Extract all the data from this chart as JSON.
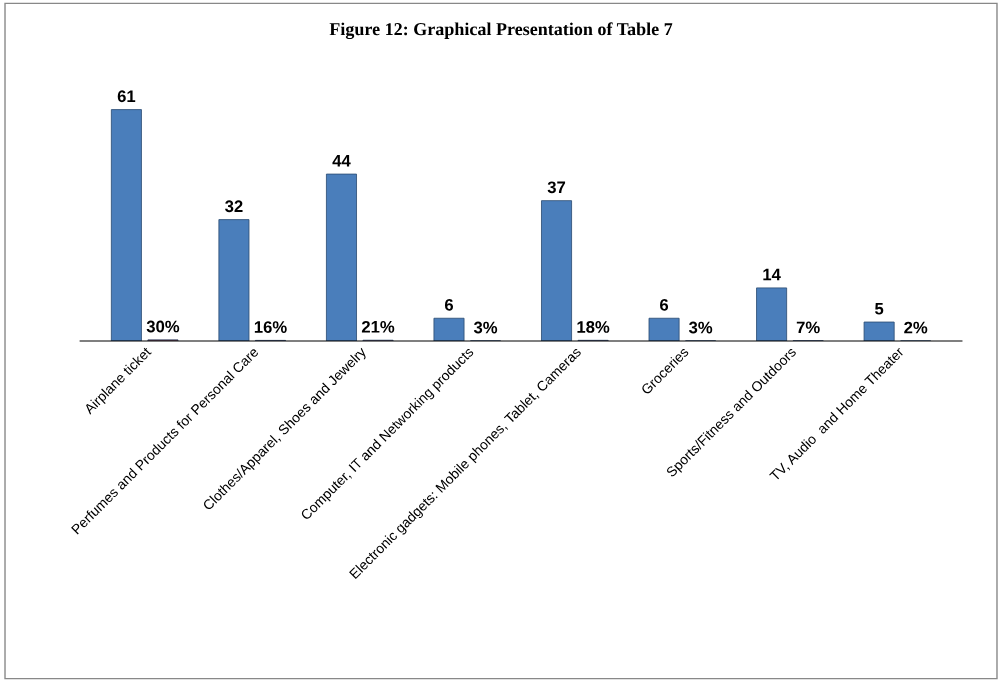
{
  "chart_data": {
    "type": "bar",
    "title": "Figure 12: Graphical Presentation of Table 7",
    "categories": [
      "Airplane ticket",
      "Perfumes and Products for Personal Care",
      "Clothes/Apparel, Shoes and Jewelry",
      "Computer, IT and Networking products",
      "Electronic gadgets: Mobile phones, Tablet, Cameras",
      "Groceries",
      "Sports/Fitness and Outdoors",
      "TV, Audio  and Home Theater"
    ],
    "series": [
      {
        "color": "#4a7ebb",
        "values": [
          61,
          32,
          44,
          6,
          37,
          6,
          14,
          5
        ],
        "value_labels": [
          "61",
          "32",
          "44",
          "6",
          "37",
          "6",
          "14",
          "5"
        ]
      },
      {
        "color": "#be4b48",
        "values": [
          0.3,
          0.16,
          0.21,
          0.03,
          0.18,
          0.03,
          0.07,
          0.02
        ],
        "value_labels": [
          "30%",
          "16%",
          "21%",
          "3%",
          "18%",
          "3%",
          "7%",
          "2%"
        ]
      }
    ],
    "grid": false,
    "legend": false
  }
}
